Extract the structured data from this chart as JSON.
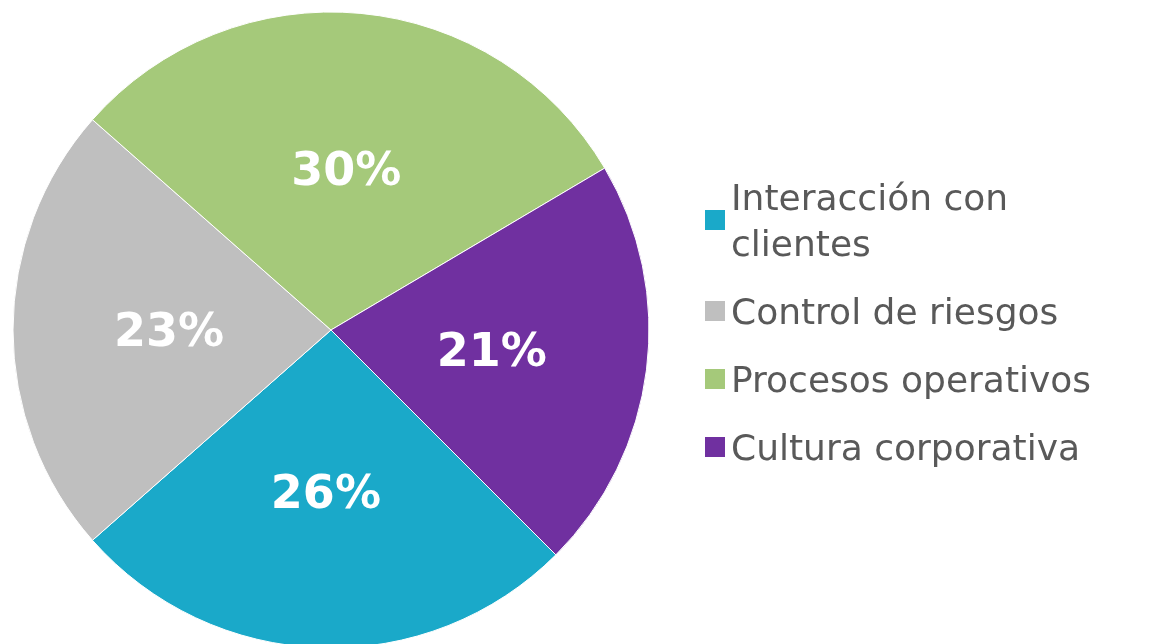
{
  "chart_data": {
    "type": "pie",
    "categories": [
      "Interacción con clientes",
      "Control de riesgos",
      "Procesos operativos",
      "Cultura corporativa"
    ],
    "values": [
      26,
      23,
      30,
      21
    ],
    "value_labels": [
      "26%",
      "23%",
      "30%",
      "21%"
    ],
    "colors": [
      "#1aa9c9",
      "#bfbfbf",
      "#a5c97a",
      "#7030a0"
    ],
    "legend": "right"
  }
}
